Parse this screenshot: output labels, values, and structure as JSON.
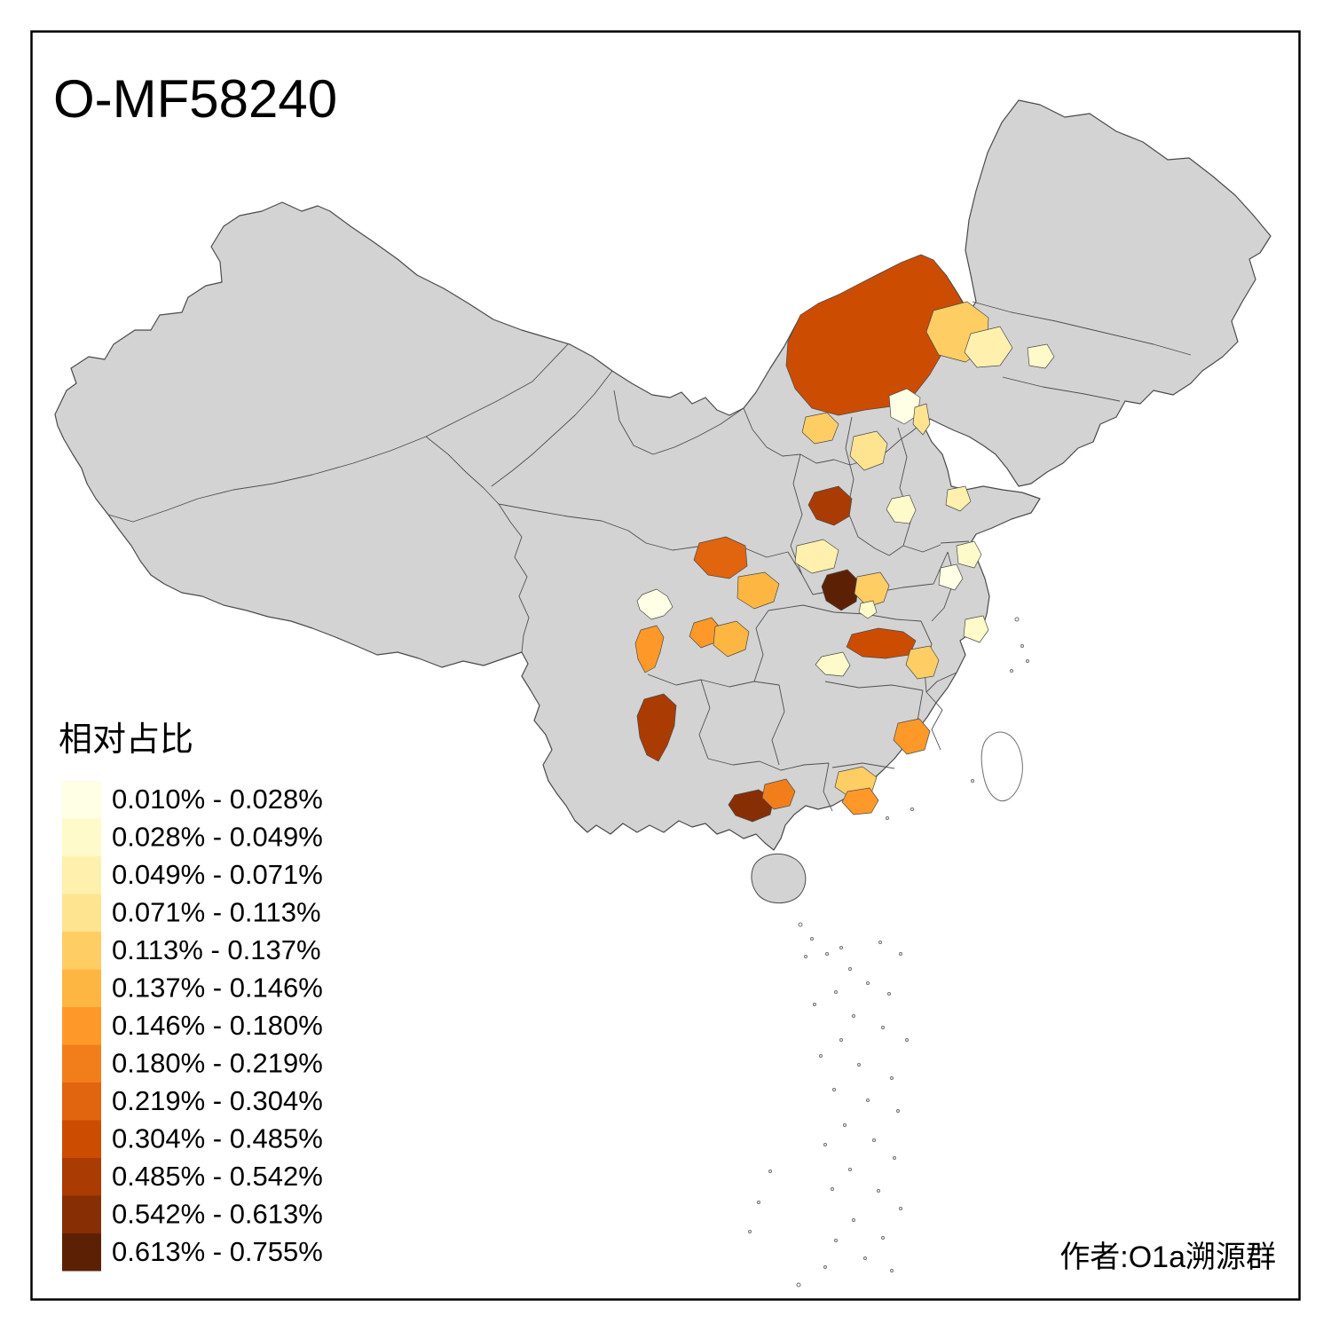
{
  "title": "O-MF58240",
  "attribution": "作者:O1a溯源群",
  "legend": {
    "title": "相对占比",
    "items": [
      {
        "label": "0.010% - 0.028%",
        "color": "#FFFFE5"
      },
      {
        "label": "0.028% - 0.049%",
        "color": "#FFFACA"
      },
      {
        "label": "0.049% - 0.071%",
        "color": "#FFF0AE"
      },
      {
        "label": "0.071% - 0.113%",
        "color": "#FEE391"
      },
      {
        "label": "0.113% - 0.137%",
        "color": "#FECE65"
      },
      {
        "label": "0.137% - 0.146%",
        "color": "#FEB642"
      },
      {
        "label": "0.146% - 0.180%",
        "color": "#FE9929"
      },
      {
        "label": "0.180% - 0.219%",
        "color": "#F27E1B"
      },
      {
        "label": "0.219% - 0.304%",
        "color": "#E1640E"
      },
      {
        "label": "0.304% - 0.485%",
        "color": "#CC4C02"
      },
      {
        "label": "0.485% - 0.542%",
        "color": "#A93B03"
      },
      {
        "label": "0.542% - 0.613%",
        "color": "#872E05"
      },
      {
        "label": "0.613% - 0.755%",
        "color": "#5C2105"
      }
    ]
  },
  "map": {
    "background_color": "#FFFFFF",
    "land_color": "#D3D3D3",
    "boundary_color": "#4A4A4A",
    "island_outline_color": "#6E6E6E",
    "frame_color": "#000000",
    "regions": [
      {
        "id": "r1",
        "legend_class": 10
      },
      {
        "id": "r2",
        "legend_class": 5
      },
      {
        "id": "r3",
        "legend_class": 3
      },
      {
        "id": "r4",
        "legend_class": 2
      },
      {
        "id": "r5",
        "legend_class": 1
      },
      {
        "id": "r6",
        "legend_class": 4
      },
      {
        "id": "r7",
        "legend_class": 5
      },
      {
        "id": "r8",
        "legend_class": 4
      },
      {
        "id": "r9",
        "legend_class": 11
      },
      {
        "id": "r10",
        "legend_class": 2
      },
      {
        "id": "r11",
        "legend_class": 3
      },
      {
        "id": "r12",
        "legend_class": 2
      },
      {
        "id": "r13",
        "legend_class": 1
      },
      {
        "id": "r14",
        "legend_class": 2
      },
      {
        "id": "r15",
        "legend_class": 9
      },
      {
        "id": "r16",
        "legend_class": 6
      },
      {
        "id": "r17",
        "legend_class": 3
      },
      {
        "id": "r18",
        "legend_class": 13
      },
      {
        "id": "r19",
        "legend_class": 5
      },
      {
        "id": "r20",
        "legend_class": 2
      },
      {
        "id": "r21",
        "legend_class": 1
      },
      {
        "id": "r22",
        "legend_class": 7
      },
      {
        "id": "r23",
        "legend_class": 6
      },
      {
        "id": "r24",
        "legend_class": 7
      },
      {
        "id": "r25",
        "legend_class": 10
      },
      {
        "id": "r26",
        "legend_class": 5
      },
      {
        "id": "r27",
        "legend_class": 2
      },
      {
        "id": "r28",
        "legend_class": 11
      },
      {
        "id": "r29",
        "legend_class": 7
      },
      {
        "id": "r30",
        "legend_class": 5
      },
      {
        "id": "r31",
        "legend_class": 7
      },
      {
        "id": "r32",
        "legend_class": 12
      },
      {
        "id": "r33",
        "legend_class": 8
      }
    ]
  }
}
